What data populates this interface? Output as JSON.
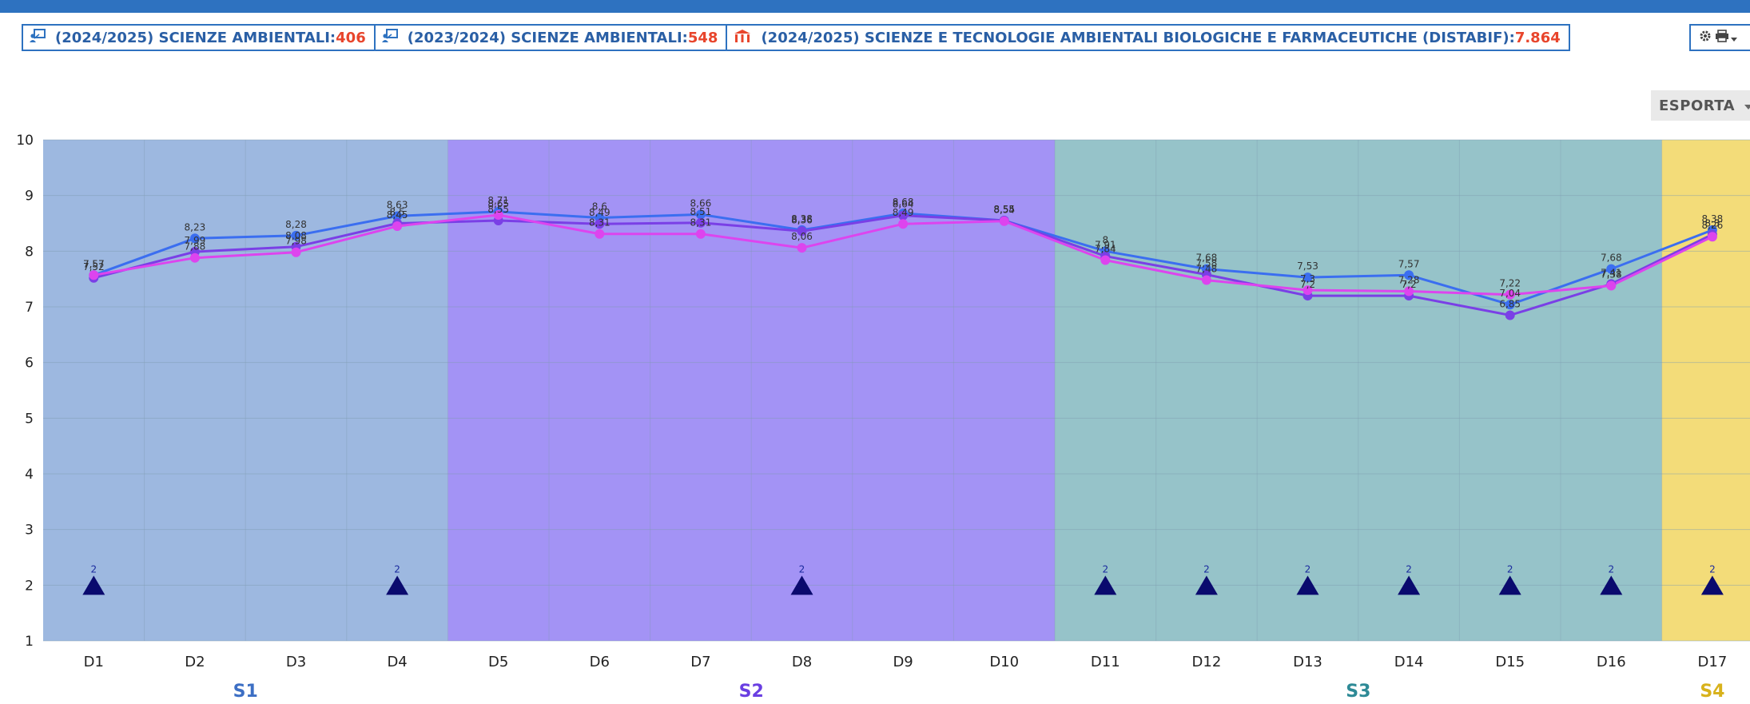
{
  "header": {
    "badges": [
      {
        "icon": "teacher-board-icon",
        "label": "(2024/2025) SCIENZE AMBIENTALI: ",
        "value": "406"
      },
      {
        "icon": "teacher-board-icon",
        "label": "(2023/2024) SCIENZE AMBIENTALI: ",
        "value": "548"
      },
      {
        "icon": "department-building-icon",
        "label": "(2024/2025) SCIENZE E TECNOLOGIE AMBIENTALI BIOLOGICHE E FARMACEUTICHE (DISTABIF): ",
        "value": "7.864"
      }
    ],
    "tools": {
      "gear_icon": "gear-icon",
      "print_icon": "printer-icon",
      "caret_icon": "caret-down-icon"
    },
    "export_label": "ESPORTA"
  },
  "chart_data": {
    "type": "line",
    "categories": [
      "D1",
      "D2",
      "D3",
      "D4",
      "D5",
      "D6",
      "D7",
      "D8",
      "D9",
      "D10",
      "D11",
      "D12",
      "D13",
      "D14",
      "D15",
      "D16",
      "D17"
    ],
    "ylim": [
      1,
      10
    ],
    "yticks": [
      1,
      2,
      3,
      4,
      5,
      6,
      7,
      8,
      9,
      10
    ],
    "grid": true,
    "series": [
      {
        "color": "#3b6ef0",
        "values": [
          7.57,
          8.23,
          8.28,
          8.63,
          8.71,
          8.6,
          8.66,
          8.38,
          8.68,
          8.55,
          8.0,
          7.68,
          7.53,
          7.57,
          7.04,
          7.68,
          8.38
        ]
      },
      {
        "color": "#7a3fe6",
        "values": [
          7.52,
          7.99,
          8.08,
          8.5,
          8.55,
          8.49,
          8.51,
          8.36,
          8.64,
          8.55,
          7.91,
          7.58,
          7.2,
          7.2,
          6.85,
          7.41,
          8.3
        ]
      },
      {
        "color": "#dd44ee",
        "values": [
          7.57,
          7.88,
          7.98,
          8.45,
          8.65,
          8.31,
          8.31,
          8.06,
          8.49,
          8.54,
          7.84,
          7.48,
          7.3,
          7.28,
          7.22,
          7.38,
          8.26
        ]
      }
    ],
    "markers": {
      "y": 2,
      "label": "2",
      "color": "#0a0a6e",
      "categories": [
        "D1",
        "D4",
        "D8",
        "D11",
        "D12",
        "D13",
        "D14",
        "D15",
        "D16",
        "D17"
      ]
    },
    "bands": [
      {
        "label": "S1",
        "from": 0,
        "to": 4,
        "color": "#9db8e0",
        "label_color": "#3d6fc4"
      },
      {
        "label": "S2",
        "from": 4,
        "to": 10,
        "color": "#a393f5",
        "label_color": "#6a3fe2"
      },
      {
        "label": "S3",
        "from": 10,
        "to": 16,
        "color": "#96c3c9",
        "label_color": "#2e8a96"
      },
      {
        "label": "S4",
        "from": 16,
        "to": 17,
        "color": "#f3dc79",
        "label_color": "#d8b21c"
      }
    ]
  }
}
